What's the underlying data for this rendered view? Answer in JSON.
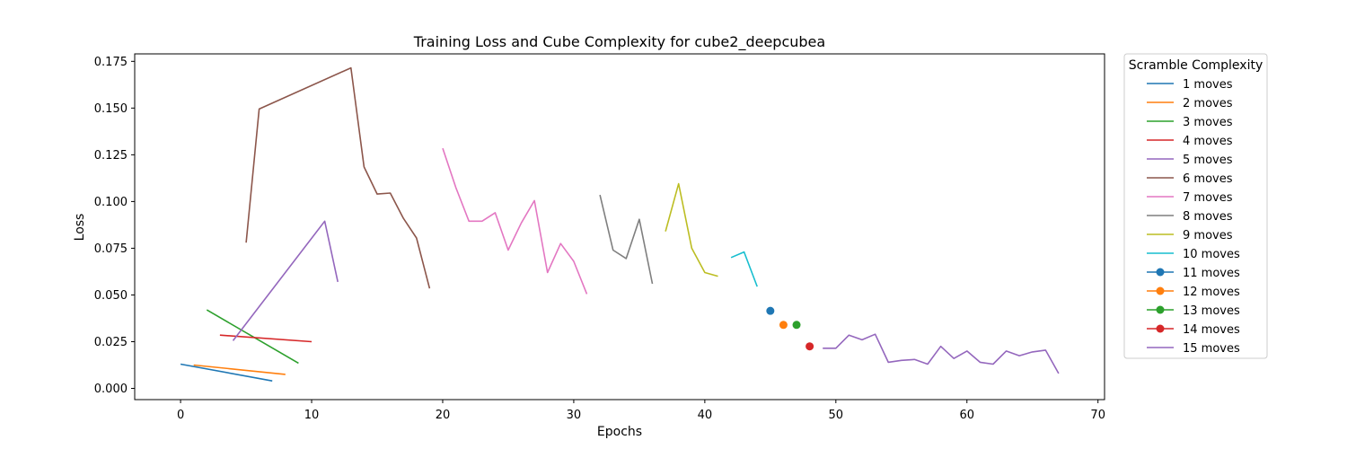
{
  "chart_data": {
    "type": "line",
    "title": "Training Loss and Cube Complexity for cube2_deepcubea",
    "xlabel": "Epochs",
    "ylabel": "Loss",
    "xlim": [
      -3.5,
      70.5
    ],
    "ylim": [
      -0.006,
      0.179
    ],
    "xticks": [
      0,
      10,
      20,
      30,
      40,
      50,
      60,
      70
    ],
    "yticks": [
      0.0,
      0.025,
      0.05,
      0.075,
      0.1,
      0.125,
      0.15,
      0.175
    ],
    "ytick_labels": [
      "0.000",
      "0.025",
      "0.050",
      "0.075",
      "0.100",
      "0.125",
      "0.150",
      "0.175"
    ],
    "grid": false,
    "legend": {
      "title": "Scramble Complexity",
      "placement": "outside-right"
    },
    "series": [
      {
        "name": "1 moves",
        "color": "#1f77b4",
        "marker": "none",
        "x": [
          0,
          7
        ],
        "y": [
          0.013,
          0.004
        ]
      },
      {
        "name": "2 moves",
        "color": "#ff7f0e",
        "marker": "none",
        "x": [
          1,
          8
        ],
        "y": [
          0.0125,
          0.0075
        ]
      },
      {
        "name": "3 moves",
        "color": "#2ca02c",
        "marker": "none",
        "x": [
          2,
          9
        ],
        "y": [
          0.042,
          0.0135
        ]
      },
      {
        "name": "4 moves",
        "color": "#d62728",
        "marker": "none",
        "x": [
          3,
          10
        ],
        "y": [
          0.0285,
          0.025
        ]
      },
      {
        "name": "5 moves",
        "color": "#9467bd",
        "marker": "none",
        "x": [
          4,
          11,
          12
        ],
        "y": [
          0.0255,
          0.0895,
          0.057
        ]
      },
      {
        "name": "6 moves",
        "color": "#8c564b",
        "marker": "none",
        "x": [
          5,
          6,
          13,
          14,
          15,
          16,
          17,
          18,
          19
        ],
        "y": [
          0.078,
          0.1495,
          0.1715,
          0.1185,
          0.104,
          0.1045,
          0.091,
          0.0805,
          0.0535
        ]
      },
      {
        "name": "7 moves",
        "color": "#e377c2",
        "marker": "none",
        "x": [
          20,
          21,
          22,
          23,
          24,
          25,
          26,
          27,
          28,
          29,
          30,
          31
        ],
        "y": [
          0.1285,
          0.1075,
          0.0895,
          0.0895,
          0.094,
          0.074,
          0.0885,
          0.1005,
          0.062,
          0.0775,
          0.068,
          0.0505
        ]
      },
      {
        "name": "8 moves",
        "color": "#7f7f7f",
        "marker": "none",
        "x": [
          32,
          33,
          34,
          35,
          36
        ],
        "y": [
          0.1035,
          0.074,
          0.0695,
          0.0905,
          0.056
        ]
      },
      {
        "name": "9 moves",
        "color": "#bcbd22",
        "marker": "none",
        "x": [
          37,
          38,
          39,
          40,
          41
        ],
        "y": [
          0.084,
          0.1095,
          0.075,
          0.062,
          0.06
        ]
      },
      {
        "name": "10 moves",
        "color": "#17becf",
        "marker": "none",
        "x": [
          42,
          43,
          44
        ],
        "y": [
          0.07,
          0.073,
          0.0545
        ]
      },
      {
        "name": "11 moves",
        "color": "#1f77b4",
        "marker": "circle",
        "x": [
          45
        ],
        "y": [
          0.0415
        ]
      },
      {
        "name": "12 moves",
        "color": "#ff7f0e",
        "marker": "circle",
        "x": [
          46
        ],
        "y": [
          0.034
        ]
      },
      {
        "name": "13 moves",
        "color": "#2ca02c",
        "marker": "circle",
        "x": [
          47
        ],
        "y": [
          0.034
        ]
      },
      {
        "name": "14 moves",
        "color": "#d62728",
        "marker": "circle",
        "x": [
          48
        ],
        "y": [
          0.0225
        ]
      },
      {
        "name": "15 moves",
        "color": "#9467bd",
        "marker": "none",
        "x": [
          49,
          50,
          51,
          52,
          53,
          54,
          55,
          56,
          57,
          58,
          59,
          60,
          61,
          62,
          63,
          64,
          65,
          66,
          67
        ],
        "y": [
          0.0215,
          0.0215,
          0.0285,
          0.026,
          0.029,
          0.014,
          0.015,
          0.0155,
          0.013,
          0.0225,
          0.016,
          0.02,
          0.014,
          0.013,
          0.02,
          0.0175,
          0.0195,
          0.0205,
          0.008
        ]
      }
    ]
  }
}
